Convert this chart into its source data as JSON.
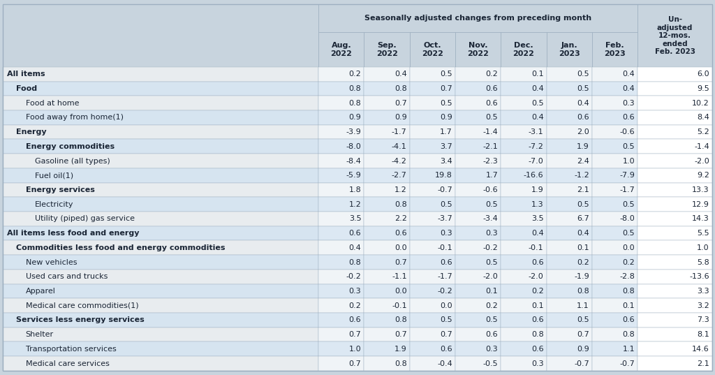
{
  "title_main": "Seasonally adjusted changes from preceding month",
  "col_headers_seasonal": [
    "Aug.\n2022",
    "Sep.\n2022",
    "Oct.\n2022",
    "Nov.\n2022",
    "Dec.\n2022",
    "Jan.\n2023",
    "Feb.\n2023"
  ],
  "col_header_unadj": "Un-\nadjusted\n12-mos.\nended\nFeb. 2023",
  "rows": [
    {
      "label": "All items",
      "indent": 0,
      "bold": true,
      "bg": "white",
      "values": [
        0.2,
        0.4,
        0.5,
        0.2,
        0.1,
        0.5,
        0.4,
        6.0
      ]
    },
    {
      "label": "Food",
      "indent": 1,
      "bold": true,
      "bg": "blue",
      "values": [
        0.8,
        0.8,
        0.7,
        0.6,
        0.4,
        0.5,
        0.4,
        9.5
      ]
    },
    {
      "label": "Food at home",
      "indent": 2,
      "bold": false,
      "bg": "white",
      "values": [
        0.8,
        0.7,
        0.5,
        0.6,
        0.5,
        0.4,
        0.3,
        10.2
      ]
    },
    {
      "label": "Food away from home(1)",
      "indent": 2,
      "bold": false,
      "bg": "blue",
      "values": [
        0.9,
        0.9,
        0.9,
        0.5,
        0.4,
        0.6,
        0.6,
        8.4
      ]
    },
    {
      "label": "Energy",
      "indent": 1,
      "bold": true,
      "bg": "white",
      "values": [
        -3.9,
        -1.7,
        1.7,
        -1.4,
        -3.1,
        2.0,
        -0.6,
        5.2
      ]
    },
    {
      "label": "Energy commodities",
      "indent": 2,
      "bold": true,
      "bg": "blue",
      "values": [
        -8.0,
        -4.1,
        3.7,
        -2.1,
        -7.2,
        1.9,
        0.5,
        -1.4
      ]
    },
    {
      "label": "Gasoline (all types)",
      "indent": 3,
      "bold": false,
      "bg": "white",
      "values": [
        -8.4,
        -4.2,
        3.4,
        -2.3,
        -7.0,
        2.4,
        1.0,
        -2.0
      ]
    },
    {
      "label": "Fuel oil(1)",
      "indent": 3,
      "bold": false,
      "bg": "blue",
      "values": [
        -5.9,
        -2.7,
        19.8,
        1.7,
        -16.6,
        -1.2,
        -7.9,
        9.2
      ]
    },
    {
      "label": "Energy services",
      "indent": 2,
      "bold": true,
      "bg": "white",
      "values": [
        1.8,
        1.2,
        -0.7,
        -0.6,
        1.9,
        2.1,
        -1.7,
        13.3
      ]
    },
    {
      "label": "Electricity",
      "indent": 3,
      "bold": false,
      "bg": "blue",
      "values": [
        1.2,
        0.8,
        0.5,
        0.5,
        1.3,
        0.5,
        0.5,
        12.9
      ]
    },
    {
      "label": "Utility (piped) gas service",
      "indent": 3,
      "bold": false,
      "bg": "white",
      "values": [
        3.5,
        2.2,
        -3.7,
        -3.4,
        3.5,
        6.7,
        -8.0,
        14.3
      ]
    },
    {
      "label": "All items less food and energy",
      "indent": 0,
      "bold": true,
      "bg": "blue",
      "values": [
        0.6,
        0.6,
        0.3,
        0.3,
        0.4,
        0.4,
        0.5,
        5.5
      ]
    },
    {
      "label": "Commodities less food and energy commodities",
      "indent": 1,
      "bold": true,
      "bg": "white",
      "values": [
        0.4,
        0.0,
        -0.1,
        -0.2,
        -0.1,
        0.1,
        0.0,
        1.0
      ]
    },
    {
      "label": "New vehicles",
      "indent": 2,
      "bold": false,
      "bg": "blue",
      "values": [
        0.8,
        0.7,
        0.6,
        0.5,
        0.6,
        0.2,
        0.2,
        5.8
      ]
    },
    {
      "label": "Used cars and trucks",
      "indent": 2,
      "bold": false,
      "bg": "white",
      "values": [
        -0.2,
        -1.1,
        -1.7,
        -2.0,
        -2.0,
        -1.9,
        -2.8,
        -13.6
      ]
    },
    {
      "label": "Apparel",
      "indent": 2,
      "bold": false,
      "bg": "blue",
      "values": [
        0.3,
        0.0,
        -0.2,
        0.1,
        0.2,
        0.8,
        0.8,
        3.3
      ]
    },
    {
      "label": "Medical care commodities(1)",
      "indent": 2,
      "bold": false,
      "bg": "white",
      "values": [
        0.2,
        -0.1,
        0.0,
        0.2,
        0.1,
        1.1,
        0.1,
        3.2
      ]
    },
    {
      "label": "Services less energy services",
      "indent": 1,
      "bold": true,
      "bg": "blue",
      "values": [
        0.6,
        0.8,
        0.5,
        0.5,
        0.6,
        0.5,
        0.6,
        7.3
      ]
    },
    {
      "label": "Shelter",
      "indent": 2,
      "bold": false,
      "bg": "white",
      "values": [
        0.7,
        0.7,
        0.7,
        0.6,
        0.8,
        0.7,
        0.8,
        8.1
      ]
    },
    {
      "label": "Transportation services",
      "indent": 2,
      "bold": false,
      "bg": "blue",
      "values": [
        1.0,
        1.9,
        0.6,
        0.3,
        0.6,
        0.9,
        1.1,
        14.6
      ]
    },
    {
      "label": "Medical care services",
      "indent": 2,
      "bold": false,
      "bg": "white",
      "values": [
        0.7,
        0.8,
        -0.4,
        -0.5,
        0.3,
        -0.7,
        -0.7,
        2.1
      ]
    }
  ],
  "color_blue_label": "#d6e4f0",
  "color_white_label": "#e8ecef",
  "color_blue_data": "#dce8f3",
  "color_white_data": "#f0f4f7",
  "color_unadj_blue": "#ffffff",
  "color_unadj_white": "#ffffff",
  "color_header_bg": "#c8d4de",
  "color_fig_bg": "#c8d4de",
  "color_border": "#9dafc0",
  "color_text": "#1a2535",
  "fontsize_data": 8.0,
  "fontsize_header": 8.0,
  "fontsize_label": 8.0
}
